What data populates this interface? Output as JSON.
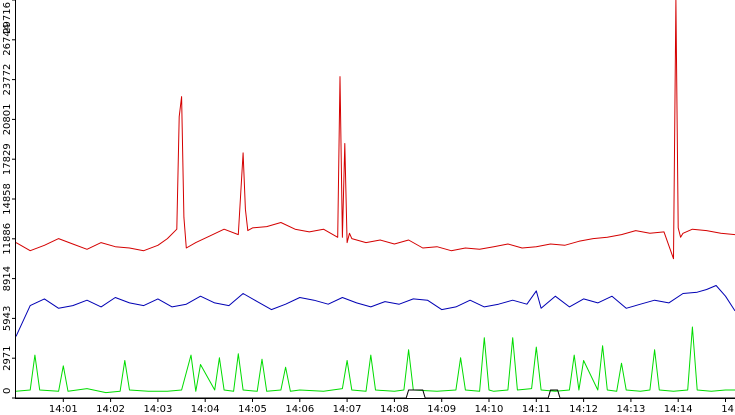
{
  "chart_data": {
    "type": "line",
    "title": "",
    "xlabel": "",
    "ylabel": "",
    "x_ticks": [
      "14:01",
      "14:02",
      "14:03",
      "14:04",
      "14:05",
      "14:06",
      "14:07",
      "14:08",
      "14:09",
      "14:10",
      "14:11",
      "14:12",
      "14:13",
      "14:14",
      "14"
    ],
    "x_range": [
      0,
      15.2
    ],
    "y_ticks": [
      "0",
      "2971",
      "5943",
      "8914",
      "11886",
      "14858",
      "17829",
      "20801",
      "23772",
      "26744",
      "29716"
    ],
    "ylim": [
      0,
      29716
    ],
    "grid": false,
    "legend": "none",
    "colors": {
      "background": "#ffffff",
      "axis": "#000000",
      "tick_text": "#000000"
    },
    "series": [
      {
        "color": "#d40000",
        "x": [
          0.0,
          0.3,
          0.6,
          0.9,
          1.2,
          1.5,
          1.8,
          2.1,
          2.4,
          2.7,
          3.0,
          3.2,
          3.4,
          3.45,
          3.5,
          3.55,
          3.6,
          3.8,
          4.1,
          4.4,
          4.7,
          4.8,
          4.85,
          4.9,
          5.0,
          5.3,
          5.6,
          5.9,
          6.2,
          6.5,
          6.8,
          6.85,
          6.9,
          6.95,
          7.0,
          7.05,
          7.1,
          7.4,
          7.7,
          8.0,
          8.3,
          8.6,
          8.9,
          9.2,
          9.5,
          9.8,
          10.1,
          10.4,
          10.7,
          11.0,
          11.3,
          11.6,
          11.9,
          12.2,
          12.5,
          12.8,
          13.1,
          13.4,
          13.7,
          13.9,
          13.95,
          14.0,
          14.05,
          14.1,
          14.3,
          14.6,
          14.9,
          15.2
        ],
        "values": [
          11600,
          11000,
          11400,
          11900,
          11500,
          11100,
          11600,
          11300,
          11200,
          11000,
          11400,
          11900,
          12600,
          21000,
          22500,
          13500,
          11200,
          11600,
          12100,
          12600,
          12200,
          18300,
          14100,
          12500,
          12700,
          12800,
          13100,
          12600,
          12400,
          12600,
          12000,
          24000,
          12000,
          19000,
          11600,
          12300,
          11900,
          11600,
          11800,
          11500,
          11800,
          11200,
          11300,
          11000,
          11200,
          11100,
          11300,
          11500,
          11200,
          11300,
          11500,
          11400,
          11700,
          11900,
          12000,
          12200,
          12500,
          12300,
          12400,
          10400,
          29700,
          12700,
          12000,
          12300,
          12600,
          12500,
          12300,
          12200
        ]
      },
      {
        "color": "#0000b4",
        "x": [
          0.0,
          0.3,
          0.6,
          0.9,
          1.2,
          1.5,
          1.8,
          2.1,
          2.4,
          2.7,
          3.0,
          3.3,
          3.6,
          3.9,
          4.2,
          4.5,
          4.8,
          5.1,
          5.4,
          5.7,
          6.0,
          6.3,
          6.6,
          6.9,
          7.2,
          7.5,
          7.8,
          8.1,
          8.4,
          8.7,
          9.0,
          9.3,
          9.6,
          9.9,
          10.2,
          10.5,
          10.8,
          11.0,
          11.1,
          11.4,
          11.7,
          12.0,
          12.3,
          12.6,
          12.9,
          13.2,
          13.5,
          13.8,
          14.1,
          14.4,
          14.6,
          14.8,
          15.0,
          15.2
        ],
        "values": [
          4600,
          6900,
          7400,
          6700,
          6900,
          7300,
          6800,
          7500,
          7100,
          6900,
          7400,
          6800,
          7000,
          7600,
          7100,
          6900,
          7800,
          7200,
          6600,
          7000,
          7500,
          7300,
          7000,
          7500,
          7100,
          6800,
          7200,
          7000,
          7400,
          7300,
          6600,
          6800,
          7300,
          6800,
          7000,
          7300,
          7000,
          8000,
          6700,
          7600,
          6800,
          7400,
          7100,
          7600,
          6700,
          7000,
          7300,
          7100,
          7800,
          7900,
          8100,
          8400,
          7600,
          6500
        ]
      },
      {
        "color": "#00dc00",
        "x": [
          0.0,
          0.3,
          0.4,
          0.5,
          0.9,
          1.0,
          1.1,
          1.5,
          1.9,
          2.2,
          2.3,
          2.4,
          2.8,
          3.2,
          3.5,
          3.7,
          3.8,
          3.9,
          4.2,
          4.3,
          4.4,
          4.6,
          4.7,
          4.8,
          5.1,
          5.2,
          5.3,
          5.6,
          5.7,
          5.8,
          6.0,
          6.5,
          6.9,
          7.0,
          7.1,
          7.4,
          7.5,
          7.6,
          8.0,
          8.2,
          8.3,
          8.4,
          8.9,
          9.3,
          9.4,
          9.5,
          9.8,
          9.9,
          10.0,
          10.1,
          10.4,
          10.5,
          10.6,
          10.9,
          11.0,
          11.1,
          11.4,
          11.7,
          11.8,
          11.9,
          12.0,
          12.3,
          12.4,
          12.5,
          12.7,
          12.8,
          12.9,
          13.2,
          13.4,
          13.5,
          13.6,
          13.9,
          14.2,
          14.3,
          14.4,
          14.7,
          15.0,
          15.2
        ],
        "values": [
          500,
          600,
          3200,
          600,
          500,
          2400,
          500,
          700,
          400,
          500,
          2800,
          600,
          500,
          500,
          600,
          3200,
          500,
          2500,
          600,
          3000,
          600,
          500,
          3300,
          600,
          500,
          2900,
          500,
          600,
          2300,
          500,
          600,
          500,
          700,
          2800,
          600,
          500,
          3200,
          600,
          500,
          600,
          3600,
          600,
          500,
          600,
          3000,
          600,
          500,
          4500,
          600,
          500,
          600,
          4500,
          600,
          700,
          3800,
          600,
          500,
          600,
          3200,
          600,
          2800,
          600,
          3900,
          600,
          500,
          2600,
          600,
          500,
          600,
          3600,
          600,
          500,
          600,
          5300,
          600,
          500,
          600,
          600
        ]
      },
      {
        "color": "#000000",
        "x": [
          0.0,
          8.25,
          8.3,
          8.6,
          8.65,
          11.25,
          11.3,
          11.45,
          11.5,
          15.2
        ],
        "values": [
          0,
          0,
          600,
          600,
          0,
          0,
          600,
          600,
          0,
          0
        ]
      }
    ]
  }
}
